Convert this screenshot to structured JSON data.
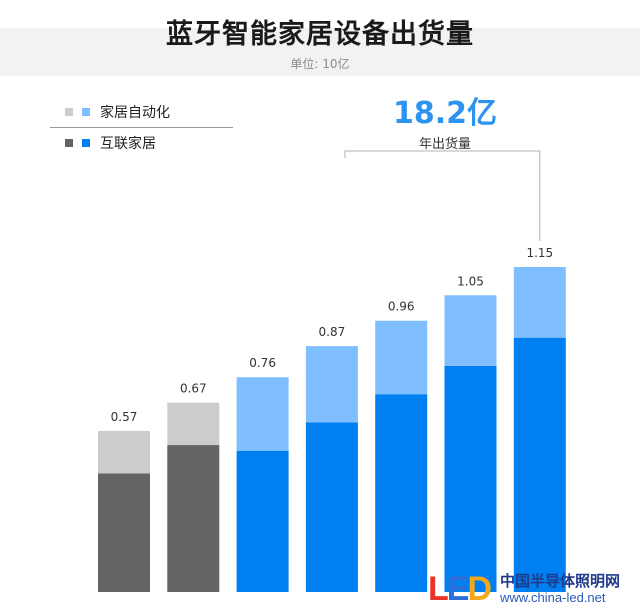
{
  "chart_data": {
    "type": "bar",
    "stacked": true,
    "title": "蓝牙智能家居设备出货量",
    "unit": "单位: 10亿",
    "values": [
      0.57,
      0.67,
      0.76,
      0.87,
      0.96,
      1.05,
      1.15
    ],
    "series": [
      {
        "name": "互联家居",
        "values": [
          0.42,
          0.52,
          0.5,
          0.6,
          0.7,
          0.8,
          0.9
        ]
      },
      {
        "name": "家居自动化",
        "values": [
          0.15,
          0.15,
          0.26,
          0.27,
          0.26,
          0.25,
          0.25
        ]
      }
    ],
    "ylim": [
      0,
      1.15
    ],
    "grid": false,
    "legend_position": "top-left"
  },
  "legend": {
    "items": [
      {
        "label": "家居自动化",
        "colors": [
          "#cccccc",
          "#80bfff"
        ]
      },
      {
        "label": "互联家居",
        "colors": [
          "#636466",
          "#0080f0"
        ]
      }
    ]
  },
  "colors": {
    "grey_top": "#cccccc",
    "grey_bottom": "#636466",
    "blue_top": "#80bfff",
    "blue_bottom": "#0080f0",
    "callout": "#2d93f0"
  },
  "bar_color_scheme": [
    "grey",
    "grey",
    "blue",
    "blue",
    "blue",
    "blue",
    "blue"
  ],
  "callout": {
    "value": "18.2亿",
    "label": "年出货量"
  },
  "watermark": {
    "mark": "LED",
    "text": "中国半导体照明网",
    "url": "www.china-led.net"
  }
}
